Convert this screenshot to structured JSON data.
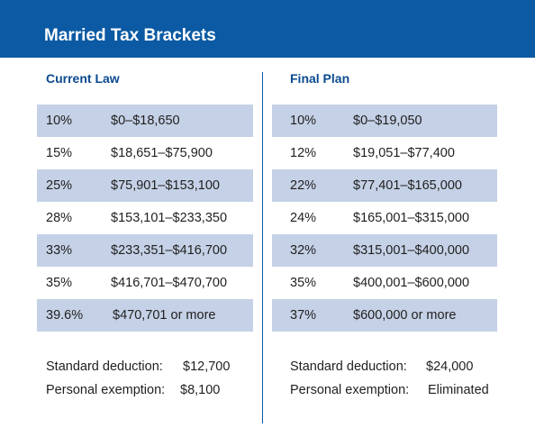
{
  "title": "Married Tax Brackets",
  "colors": {
    "header_bg": "#0b5aa3",
    "row_shade": "#c5d1e6",
    "heading": "#0b4a8f"
  },
  "current": {
    "heading": "Current Law",
    "rows": [
      {
        "rate": "10%",
        "range": "$0–$18,650"
      },
      {
        "rate": "15%",
        "range": "$18,651–$75,900"
      },
      {
        "rate": "25%",
        "range": "$75,901–$153,100"
      },
      {
        "rate": "28%",
        "range": "$153,101–$233,350"
      },
      {
        "rate": "33%",
        "range": "$233,351–$416,700"
      },
      {
        "rate": "35%",
        "range": "$416,701–$470,700"
      },
      {
        "rate": "39.6%",
        "range": "$470,701 or more"
      }
    ],
    "standard_deduction_label": "Standard deduction:",
    "standard_deduction": "$12,700",
    "personal_exemption_label": "Personal exemption:",
    "personal_exemption": "$8,100"
  },
  "final": {
    "heading": "Final Plan",
    "rows": [
      {
        "rate": "10%",
        "range": "$0–$19,050"
      },
      {
        "rate": "12%",
        "range": "$19,051–$77,400"
      },
      {
        "rate": "22%",
        "range": "$77,401–$165,000"
      },
      {
        "rate": "24%",
        "range": "$165,001–$315,000"
      },
      {
        "rate": "32%",
        "range": "$315,001–$400,000"
      },
      {
        "rate": "35%",
        "range": "$400,001–$600,000"
      },
      {
        "rate": "37%",
        "range": "$600,000 or more"
      }
    ],
    "standard_deduction_label": "Standard deduction:",
    "standard_deduction": "$24,000",
    "personal_exemption_label": "Personal exemption:",
    "personal_exemption": "Eliminated"
  }
}
